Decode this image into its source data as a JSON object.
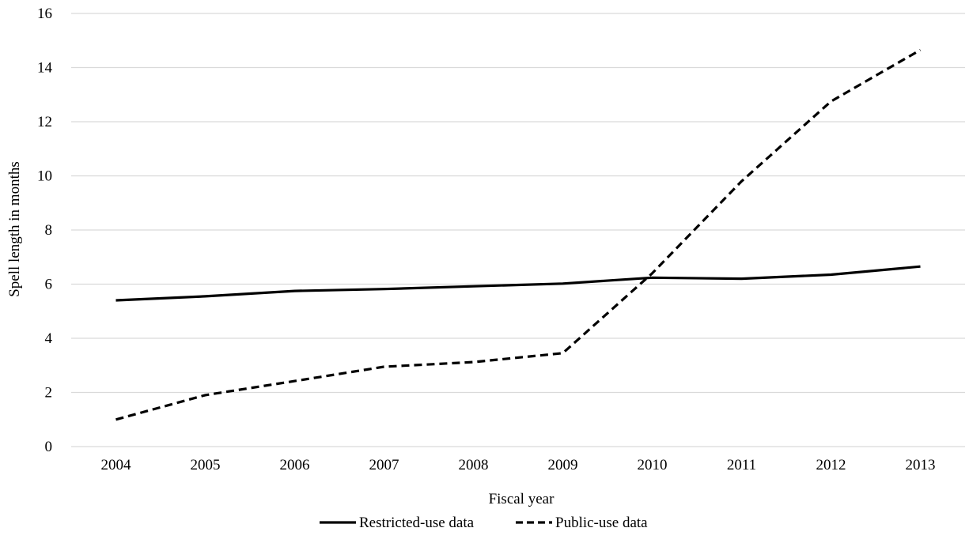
{
  "chart_data": {
    "type": "line",
    "title": "",
    "xlabel": "Fiscal year",
    "ylabel": "Spell length in months",
    "categories": [
      "2004",
      "2005",
      "2006",
      "2007",
      "2008",
      "2009",
      "2010",
      "2011",
      "2012",
      "2013"
    ],
    "ylim": [
      0,
      16
    ],
    "yticks": [
      "0",
      "2",
      "4",
      "6",
      "8",
      "10",
      "12",
      "14",
      "16"
    ],
    "grid": "horizontal",
    "legend_position": "bottom-center",
    "series": [
      {
        "name": "Restricted-use data",
        "style": "solid",
        "color": "#000000",
        "values": [
          5.4,
          5.55,
          5.75,
          5.82,
          5.92,
          6.02,
          6.24,
          6.2,
          6.35,
          6.65
        ]
      },
      {
        "name": "Public-use data",
        "style": "dashed",
        "color": "#000000",
        "values": [
          1.0,
          1.9,
          2.42,
          2.95,
          3.12,
          3.45,
          6.4,
          9.8,
          12.75,
          14.65
        ]
      }
    ]
  }
}
